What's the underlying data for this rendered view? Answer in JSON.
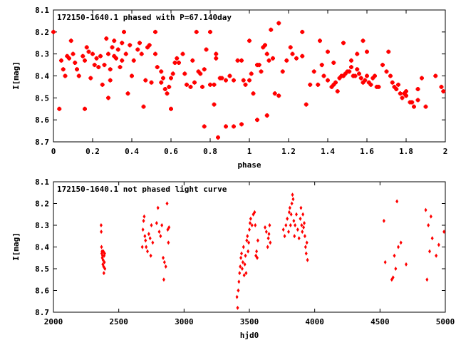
{
  "chart_data": [
    {
      "type": "scatter",
      "title": "172150-1640.1 phased with P=67.140day",
      "xlabel": "phase",
      "ylabel": "I[mag]",
      "xlim": [
        0,
        2
      ],
      "ylim": [
        8.7,
        8.1
      ],
      "y_inverted": true,
      "xticks": [
        "0",
        "0.2",
        "0.4",
        "0.6",
        "0.8",
        "1",
        "1.2",
        "1.4",
        "1.6",
        "1.8",
        "2"
      ],
      "yticks": [
        "8.1",
        "8.2",
        "8.3",
        "8.4",
        "8.5",
        "8.6",
        "8.7"
      ],
      "marker_color": "#ff0000",
      "marker": "filled-star",
      "grid": false,
      "points": [
        [
          0.0,
          8.2
        ],
        [
          0.03,
          8.55
        ],
        [
          0.04,
          8.33
        ],
        [
          0.05,
          8.37
        ],
        [
          0.06,
          8.4
        ],
        [
          0.07,
          8.31
        ],
        [
          0.08,
          8.32
        ],
        [
          0.09,
          8.24
        ],
        [
          0.1,
          8.3
        ],
        [
          0.11,
          8.34
        ],
        [
          0.12,
          8.37
        ],
        [
          0.13,
          8.4
        ],
        [
          0.15,
          8.31
        ],
        [
          0.16,
          8.33
        ],
        [
          0.16,
          8.55
        ],
        [
          0.17,
          8.27
        ],
        [
          0.18,
          8.29
        ],
        [
          0.19,
          8.41
        ],
        [
          0.2,
          8.3
        ],
        [
          0.21,
          8.35
        ],
        [
          0.22,
          8.32
        ],
        [
          0.23,
          8.36
        ],
        [
          0.24,
          8.31
        ],
        [
          0.25,
          8.44
        ],
        [
          0.26,
          8.35
        ],
        [
          0.27,
          8.23
        ],
        [
          0.28,
          8.3
        ],
        [
          0.28,
          8.5
        ],
        [
          0.29,
          8.37
        ],
        [
          0.3,
          8.27
        ],
        [
          0.31,
          8.31
        ],
        [
          0.32,
          8.32
        ],
        [
          0.33,
          8.28
        ],
        [
          0.34,
          8.36
        ],
        [
          0.35,
          8.33
        ],
        [
          0.36,
          8.2
        ],
        [
          0.37,
          8.3
        ],
        [
          0.38,
          8.48
        ],
        [
          0.39,
          8.26
        ],
        [
          0.4,
          8.4
        ],
        [
          0.41,
          8.33
        ],
        [
          0.43,
          8.28
        ],
        [
          0.44,
          8.25
        ],
        [
          0.45,
          8.3
        ],
        [
          0.46,
          8.54
        ],
        [
          0.47,
          8.42
        ],
        [
          0.48,
          8.27
        ],
        [
          0.49,
          8.26
        ],
        [
          0.5,
          8.43
        ],
        [
          0.52,
          8.3
        ],
        [
          0.53,
          8.36
        ],
        [
          0.55,
          8.43
        ],
        [
          0.56,
          8.41
        ],
        [
          0.57,
          8.46
        ],
        [
          0.58,
          8.48
        ],
        [
          0.59,
          8.45
        ],
        [
          0.6,
          8.41
        ],
        [
          0.61,
          8.39
        ],
        [
          0.62,
          8.34
        ],
        [
          0.63,
          8.32
        ],
        [
          0.64,
          8.34
        ],
        [
          0.66,
          8.3
        ],
        [
          0.67,
          8.39
        ],
        [
          0.68,
          8.44
        ],
        [
          0.7,
          8.45
        ],
        [
          0.71,
          8.33
        ],
        [
          0.72,
          8.43
        ],
        [
          0.74,
          8.38
        ],
        [
          0.75,
          8.39
        ],
        [
          0.76,
          8.45
        ],
        [
          0.77,
          8.37
        ],
        [
          0.78,
          8.28
        ],
        [
          0.8,
          8.44
        ],
        [
          0.82,
          8.44
        ],
        [
          0.83,
          8.32
        ],
        [
          0.85,
          8.41
        ],
        [
          0.86,
          8.41
        ],
        [
          0.88,
          8.42
        ],
        [
          0.9,
          8.4
        ],
        [
          0.92,
          8.42
        ],
        [
          0.94,
          8.33
        ],
        [
          0.96,
          8.33
        ],
        [
          0.97,
          8.42
        ],
        [
          0.98,
          8.44
        ],
        [
          1.0,
          8.42
        ],
        [
          1.01,
          8.39
        ],
        [
          1.02,
          8.48
        ],
        [
          1.04,
          8.35
        ],
        [
          1.05,
          8.35
        ],
        [
          1.06,
          8.38
        ],
        [
          1.07,
          8.27
        ],
        [
          1.08,
          8.26
        ],
        [
          1.09,
          8.3
        ],
        [
          1.1,
          8.33
        ],
        [
          1.12,
          8.32
        ],
        [
          1.13,
          8.48
        ],
        [
          1.15,
          8.49
        ],
        [
          1.17,
          8.38
        ],
        [
          1.19,
          8.33
        ],
        [
          1.22,
          8.3
        ],
        [
          1.24,
          8.32
        ],
        [
          1.27,
          8.31
        ],
        [
          1.29,
          8.53
        ],
        [
          1.31,
          8.44
        ],
        [
          1.33,
          8.38
        ],
        [
          1.35,
          8.44
        ],
        [
          1.37,
          8.35
        ],
        [
          1.38,
          8.4
        ],
        [
          1.4,
          8.42
        ],
        [
          1.42,
          8.45
        ],
        [
          1.43,
          8.44
        ],
        [
          1.44,
          8.43
        ],
        [
          1.45,
          8.47
        ],
        [
          1.46,
          8.41
        ],
        [
          1.47,
          8.4
        ],
        [
          1.48,
          8.4
        ],
        [
          1.49,
          8.39
        ],
        [
          1.5,
          8.38
        ],
        [
          1.51,
          8.38
        ],
        [
          1.52,
          8.36
        ],
        [
          1.53,
          8.4
        ],
        [
          1.54,
          8.4
        ],
        [
          1.55,
          8.37
        ],
        [
          1.56,
          8.39
        ],
        [
          1.57,
          8.41
        ],
        [
          1.58,
          8.43
        ],
        [
          1.59,
          8.42
        ],
        [
          1.6,
          8.4
        ],
        [
          1.61,
          8.43
        ],
        [
          1.62,
          8.44
        ],
        [
          1.63,
          8.41
        ],
        [
          1.64,
          8.4
        ],
        [
          1.65,
          8.45
        ],
        [
          1.66,
          8.45
        ],
        [
          1.68,
          8.35
        ],
        [
          1.7,
          8.38
        ],
        [
          1.72,
          8.4
        ],
        [
          1.74,
          8.45
        ],
        [
          1.75,
          8.46
        ],
        [
          1.76,
          8.44
        ],
        [
          1.77,
          8.48
        ],
        [
          1.78,
          8.5
        ],
        [
          1.79,
          8.48
        ],
        [
          1.8,
          8.49
        ],
        [
          1.82,
          8.52
        ],
        [
          1.84,
          8.54
        ],
        [
          1.86,
          8.51
        ],
        [
          1.88,
          8.41
        ],
        [
          1.9,
          8.54
        ],
        [
          1.95,
          8.4
        ],
        [
          1.98,
          8.45
        ],
        [
          1.99,
          8.47
        ],
        [
          0.29,
          8.42
        ],
        [
          0.31,
          8.24
        ],
        [
          0.52,
          8.2
        ],
        [
          0.55,
          8.38
        ],
        [
          0.6,
          8.55
        ],
        [
          0.73,
          8.2
        ],
        [
          0.77,
          8.63
        ],
        [
          0.8,
          8.2
        ],
        [
          0.82,
          8.53
        ],
        [
          0.84,
          8.68
        ],
        [
          0.88,
          8.63
        ],
        [
          0.92,
          8.63
        ],
        [
          0.96,
          8.62
        ],
        [
          1.0,
          8.24
        ],
        [
          1.04,
          8.6
        ],
        [
          1.09,
          8.58
        ],
        [
          1.11,
          8.19
        ],
        [
          1.15,
          8.16
        ],
        [
          1.21,
          8.27
        ],
        [
          1.27,
          8.2
        ],
        [
          1.36,
          8.24
        ],
        [
          1.4,
          8.29
        ],
        [
          1.43,
          8.34
        ],
        [
          1.48,
          8.25
        ],
        [
          1.52,
          8.33
        ],
        [
          1.55,
          8.3
        ],
        [
          1.6,
          8.29
        ],
        [
          1.71,
          8.29
        ],
        [
          1.73,
          8.43
        ],
        [
          1.8,
          8.47
        ],
        [
          1.83,
          8.52
        ],
        [
          1.86,
          8.46
        ],
        [
          0.35,
          8.25
        ],
        [
          0.83,
          8.3
        ],
        [
          1.58,
          8.24
        ]
      ]
    },
    {
      "type": "scatter",
      "title": "172150-1640.1 not phased light curve",
      "xlabel": "hjd0",
      "ylabel": "I[mag]",
      "xlim": [
        2000,
        5000
      ],
      "ylim": [
        8.7,
        8.1
      ],
      "y_inverted": true,
      "xticks": [
        "2000",
        "2500",
        "3000",
        "3500",
        "4000",
        "4500",
        "5000"
      ],
      "yticks": [
        "8.1",
        "8.2",
        "8.3",
        "8.4",
        "8.5",
        "8.6",
        "8.7"
      ],
      "marker_color": "#ff0000",
      "marker": "diamond",
      "grid": false,
      "points": [
        [
          2365,
          8.3
        ],
        [
          2366,
          8.33
        ],
        [
          2368,
          8.4
        ],
        [
          2370,
          8.43
        ],
        [
          2372,
          8.42
        ],
        [
          2374,
          8.45
        ],
        [
          2376,
          8.44
        ],
        [
          2378,
          8.48
        ],
        [
          2380,
          8.46
        ],
        [
          2382,
          8.42
        ],
        [
          2384,
          8.49
        ],
        [
          2386,
          8.52
        ],
        [
          2388,
          8.44
        ],
        [
          2390,
          8.47
        ],
        [
          2392,
          8.43
        ],
        [
          2394,
          8.5
        ],
        [
          2680,
          8.4
        ],
        [
          2685,
          8.32
        ],
        [
          2690,
          8.28
        ],
        [
          2695,
          8.26
        ],
        [
          2700,
          8.35
        ],
        [
          2705,
          8.37
        ],
        [
          2710,
          8.4
        ],
        [
          2720,
          8.42
        ],
        [
          2730,
          8.34
        ],
        [
          2740,
          8.36
        ],
        [
          2745,
          8.44
        ],
        [
          2750,
          8.3
        ],
        [
          2760,
          8.38
        ],
        [
          2790,
          8.29
        ],
        [
          2800,
          8.22
        ],
        [
          2810,
          8.33
        ],
        [
          2820,
          8.35
        ],
        [
          2830,
          8.3
        ],
        [
          2840,
          8.45
        ],
        [
          2845,
          8.55
        ],
        [
          2850,
          8.47
        ],
        [
          2860,
          8.49
        ],
        [
          2870,
          8.2
        ],
        [
          2875,
          8.32
        ],
        [
          2880,
          8.38
        ],
        [
          2885,
          8.31
        ],
        [
          3405,
          8.63
        ],
        [
          3410,
          8.68
        ],
        [
          3415,
          8.6
        ],
        [
          3420,
          8.56
        ],
        [
          3425,
          8.52
        ],
        [
          3430,
          8.49
        ],
        [
          3435,
          8.45
        ],
        [
          3440,
          8.43
        ],
        [
          3445,
          8.5
        ],
        [
          3450,
          8.47
        ],
        [
          3455,
          8.4
        ],
        [
          3460,
          8.53
        ],
        [
          3465,
          8.48
        ],
        [
          3470,
          8.44
        ],
        [
          3475,
          8.52
        ],
        [
          3480,
          8.37
        ],
        [
          3485,
          8.35
        ],
        [
          3490,
          8.42
        ],
        [
          3495,
          8.38
        ],
        [
          3500,
          8.32
        ],
        [
          3505,
          8.29
        ],
        [
          3510,
          8.27
        ],
        [
          3520,
          8.3
        ],
        [
          3530,
          8.25
        ],
        [
          3540,
          8.24
        ],
        [
          3545,
          8.3
        ],
        [
          3550,
          8.44
        ],
        [
          3555,
          8.42
        ],
        [
          3560,
          8.45
        ],
        [
          3565,
          8.37
        ],
        [
          3620,
          8.31
        ],
        [
          3630,
          8.33
        ],
        [
          3640,
          8.4
        ],
        [
          3645,
          8.36
        ],
        [
          3650,
          8.34
        ],
        [
          3655,
          8.3
        ],
        [
          3660,
          8.38
        ],
        [
          3760,
          8.32
        ],
        [
          3770,
          8.35
        ],
        [
          3780,
          8.3
        ],
        [
          3790,
          8.27
        ],
        [
          3800,
          8.33
        ],
        [
          3805,
          8.24
        ],
        [
          3810,
          8.22
        ],
        [
          3815,
          8.3
        ],
        [
          3820,
          8.25
        ],
        [
          3825,
          8.2
        ],
        [
          3830,
          8.16
        ],
        [
          3835,
          8.18
        ],
        [
          3840,
          8.28
        ],
        [
          3845,
          8.35
        ],
        [
          3850,
          8.3
        ],
        [
          3860,
          8.25
        ],
        [
          3870,
          8.32
        ],
        [
          3880,
          8.36
        ],
        [
          3890,
          8.27
        ],
        [
          3895,
          8.22
        ],
        [
          3900,
          8.3
        ],
        [
          3905,
          8.33
        ],
        [
          3910,
          8.25
        ],
        [
          3915,
          8.31
        ],
        [
          3920,
          8.29
        ],
        [
          3925,
          8.35
        ],
        [
          3930,
          8.4
        ],
        [
          3935,
          8.43
        ],
        [
          3940,
          8.38
        ],
        [
          3945,
          8.46
        ],
        [
          4530,
          8.28
        ],
        [
          4540,
          8.47
        ],
        [
          4590,
          8.55
        ],
        [
          4600,
          8.54
        ],
        [
          4610,
          8.44
        ],
        [
          4620,
          8.5
        ],
        [
          4630,
          8.19
        ],
        [
          4640,
          8.4
        ],
        [
          4660,
          8.38
        ],
        [
          4700,
          8.48
        ],
        [
          4850,
          8.23
        ],
        [
          4860,
          8.55
        ],
        [
          4870,
          8.3
        ],
        [
          4880,
          8.42
        ],
        [
          4890,
          8.26
        ],
        [
          4900,
          8.36
        ],
        [
          4930,
          8.44
        ],
        [
          4950,
          8.39
        ],
        [
          4990,
          8.33
        ]
      ]
    }
  ]
}
